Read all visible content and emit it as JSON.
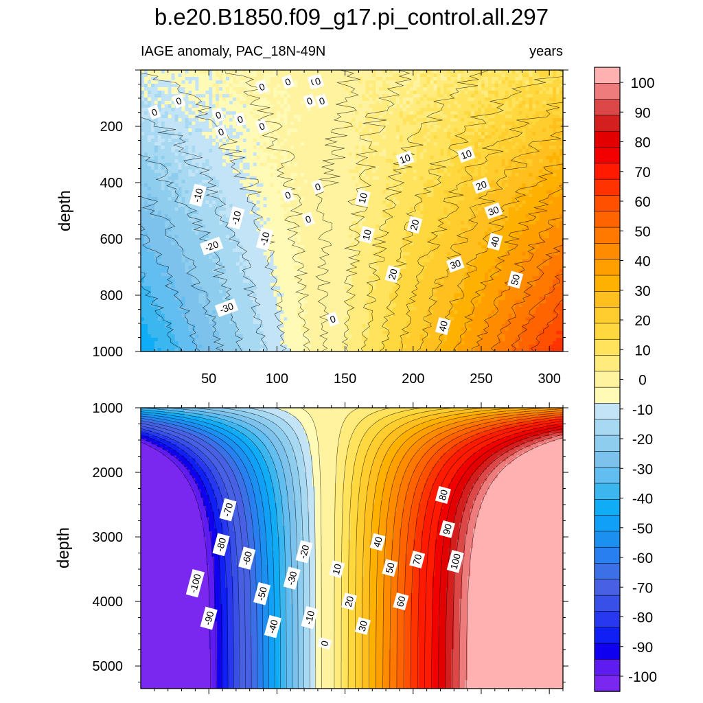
{
  "chart_data": [
    {
      "type": "heatmap",
      "title": "b.e20.B1850.f09_g17.pi_control.all.297",
      "left_subtitle": "IAGE anomaly, PAC_18N-49N",
      "right_subtitle": "years",
      "xlabel": "",
      "ylabel": "depth",
      "xlim": [
        0,
        310
      ],
      "ylim": [
        1000,
        0
      ],
      "x_ticks": [
        "50",
        "100",
        "150",
        "200",
        "250",
        "300"
      ],
      "y_ticks": [
        "200",
        "400",
        "600",
        "800",
        "1000"
      ],
      "zero_crossing_x": 137,
      "contour_labels": [
        "0",
        "0",
        "0",
        "0",
        "0",
        "0",
        "0",
        "0",
        "0",
        "0",
        "0",
        "0",
        "0",
        "0",
        "0",
        "0",
        "-10",
        "-10",
        "-10",
        "-20",
        "-30",
        "10",
        "10",
        "10",
        "10",
        "20",
        "20",
        "20",
        "30",
        "30",
        "40",
        "40",
        "50"
      ]
    },
    {
      "type": "heatmap",
      "title": "",
      "xlabel": "",
      "ylabel": "depth",
      "xlim": [
        0,
        310
      ],
      "ylim": [
        5350,
        1000
      ],
      "y_ticks": [
        "1000",
        "2000",
        "3000",
        "4000",
        "5000"
      ],
      "zero_crossing_x": 137,
      "contour_labels": [
        "-70",
        "-80",
        "-60",
        "-100",
        "-50",
        "-90",
        "-40",
        "-30",
        "-20",
        "-10",
        "0",
        "10",
        "20",
        "30",
        "40",
        "50",
        "60",
        "70",
        "80",
        "90",
        "100"
      ]
    }
  ],
  "colorbar": {
    "labels": [
      "100",
      "90",
      "80",
      "70",
      "60",
      "50",
      "40",
      "30",
      "20",
      "10",
      "0",
      "-10",
      "-20",
      "-30",
      "-40",
      "-50",
      "-60",
      "-70",
      "-80",
      "-90",
      "-100"
    ],
    "colors": [
      "#ffb0b0",
      "#ef7c7c",
      "#dc4848",
      "#d41f1f",
      "#e20000",
      "#f20000",
      "#ff1a00",
      "#ff3300",
      "#ff5000",
      "#ff6400",
      "#ff7800",
      "#ff8c00",
      "#ffa000",
      "#ffb100",
      "#ffc01f",
      "#ffcd2e",
      "#ffd83f",
      "#ffe35d",
      "#ffec7d",
      "#fff3a0",
      "#fffbb7",
      "#c3e4f6",
      "#a8d9f2",
      "#8ecdee",
      "#7cc2ec",
      "#62bef0",
      "#3cb6ef",
      "#10acf5",
      "#10a0f8",
      "#1c90f0",
      "#2880f0",
      "#3c70e6",
      "#4860e3",
      "#3850e8",
      "#2838f0",
      "#1020f4",
      "#1000f0",
      "#5e1cf0",
      "#7a28f0"
    ],
    "cmin": -110,
    "cmax": 110,
    "step": 5
  }
}
